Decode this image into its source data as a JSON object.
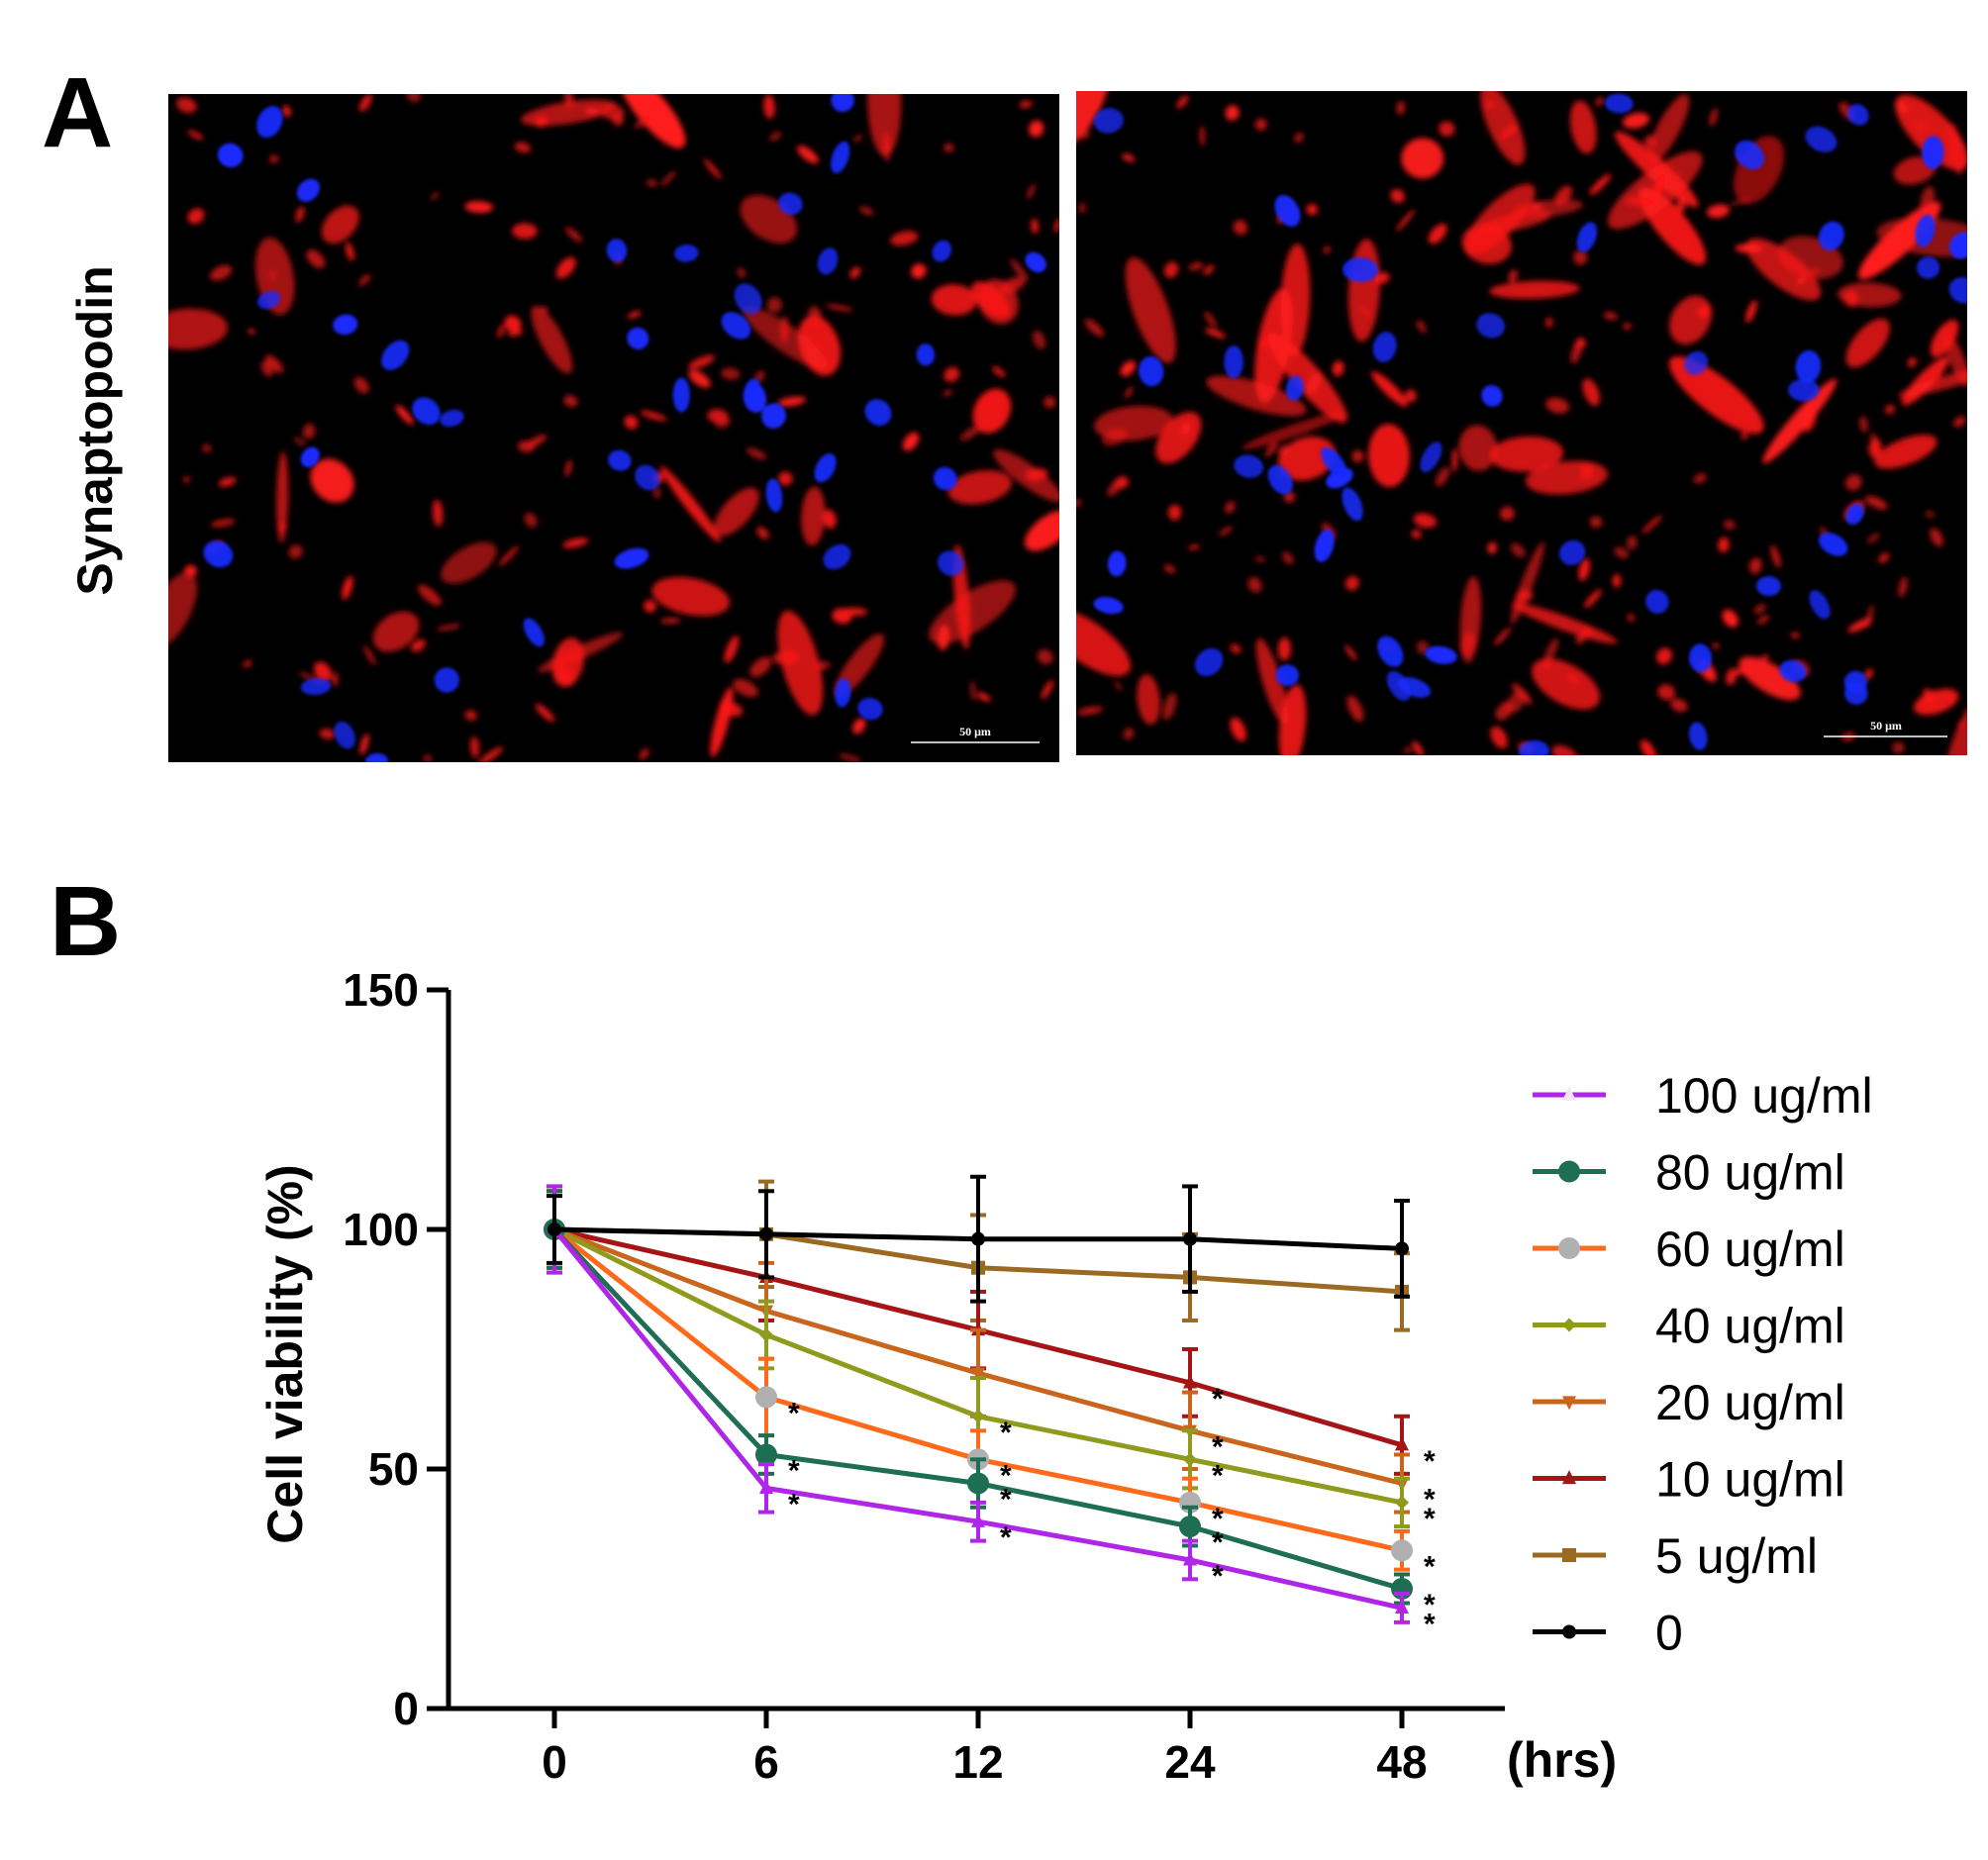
{
  "panel_a": {
    "letter": "A",
    "row_label": "Synaptopodin",
    "images": [
      {
        "scale_bar_label": "50 μm",
        "nucleus_color": "#1a2cff",
        "stain_color": "#ff1a1a"
      },
      {
        "scale_bar_label": "50 μm",
        "nucleus_color": "#1a2cff",
        "stain_color": "#ff1a1a"
      }
    ]
  },
  "panel_b": {
    "letter": "B"
  },
  "chart_data": {
    "type": "line",
    "title": "",
    "xlabel": "(hrs)",
    "ylabel": "Cell viability (%)",
    "categories": [
      "0",
      "6",
      "12",
      "24",
      "48"
    ],
    "ylim": [
      0,
      150
    ],
    "yticks": [
      0,
      50,
      100,
      150
    ],
    "grid": false,
    "legend_position": "right",
    "significance_marker": "*",
    "series": [
      {
        "name": "100 ug/ml",
        "color": "#b026e8",
        "marker": "triangle-up",
        "values": [
          100,
          46,
          39,
          31,
          21
        ],
        "errors": [
          9,
          5,
          4,
          4,
          3
        ],
        "significant": [
          false,
          true,
          true,
          true,
          true
        ]
      },
      {
        "name": " 80 ug/ml",
        "color": "#1d6e52",
        "marker": "circle",
        "values": [
          100,
          53,
          47,
          38,
          25
        ],
        "errors": [
          8,
          4,
          5,
          4,
          3
        ],
        "significant": [
          false,
          true,
          true,
          true,
          true
        ]
      },
      {
        "name": " 60 ug/ml",
        "color": "#ff6a1a",
        "marker": "circle",
        "values": [
          100,
          65,
          52,
          43,
          33
        ],
        "errors": [
          8,
          8,
          6,
          5,
          4
        ],
        "significant": [
          false,
          true,
          true,
          true,
          true
        ]
      },
      {
        "name": " 40 ug/ml",
        "color": "#8f9b1c",
        "marker": "diamond",
        "values": [
          100,
          78,
          61,
          52,
          43
        ],
        "errors": [
          9,
          7,
          8,
          6,
          5
        ],
        "significant": [
          false,
          false,
          true,
          true,
          true
        ]
      },
      {
        "name": " 20 ug/ml",
        "color": "#c9651c",
        "marker": "triangle-down",
        "values": [
          100,
          83,
          70,
          58,
          47
        ],
        "errors": [
          8,
          10,
          9,
          8,
          6
        ],
        "significant": [
          false,
          false,
          false,
          true,
          true
        ]
      },
      {
        "name": " 10 ug/ml",
        "color": "#a51515",
        "marker": "triangle-up",
        "values": [
          100,
          90,
          79,
          68,
          55
        ],
        "errors": [
          8,
          9,
          8,
          7,
          6
        ],
        "significant": [
          false,
          false,
          false,
          true,
          true
        ]
      },
      {
        "name": " 5 ug/ml",
        "color": "#9a6a22",
        "marker": "square",
        "values": [
          100,
          99,
          92,
          90,
          87
        ],
        "errors": [
          9,
          11,
          11,
          9,
          8
        ],
        "significant": [
          false,
          false,
          false,
          false,
          false
        ]
      },
      {
        "name": "0",
        "color": "#000000",
        "marker": "circle",
        "values": [
          100,
          99,
          98,
          98,
          96
        ],
        "errors": [
          7,
          9,
          13,
          11,
          10
        ],
        "significant": [
          false,
          false,
          false,
          false,
          false
        ]
      }
    ]
  }
}
